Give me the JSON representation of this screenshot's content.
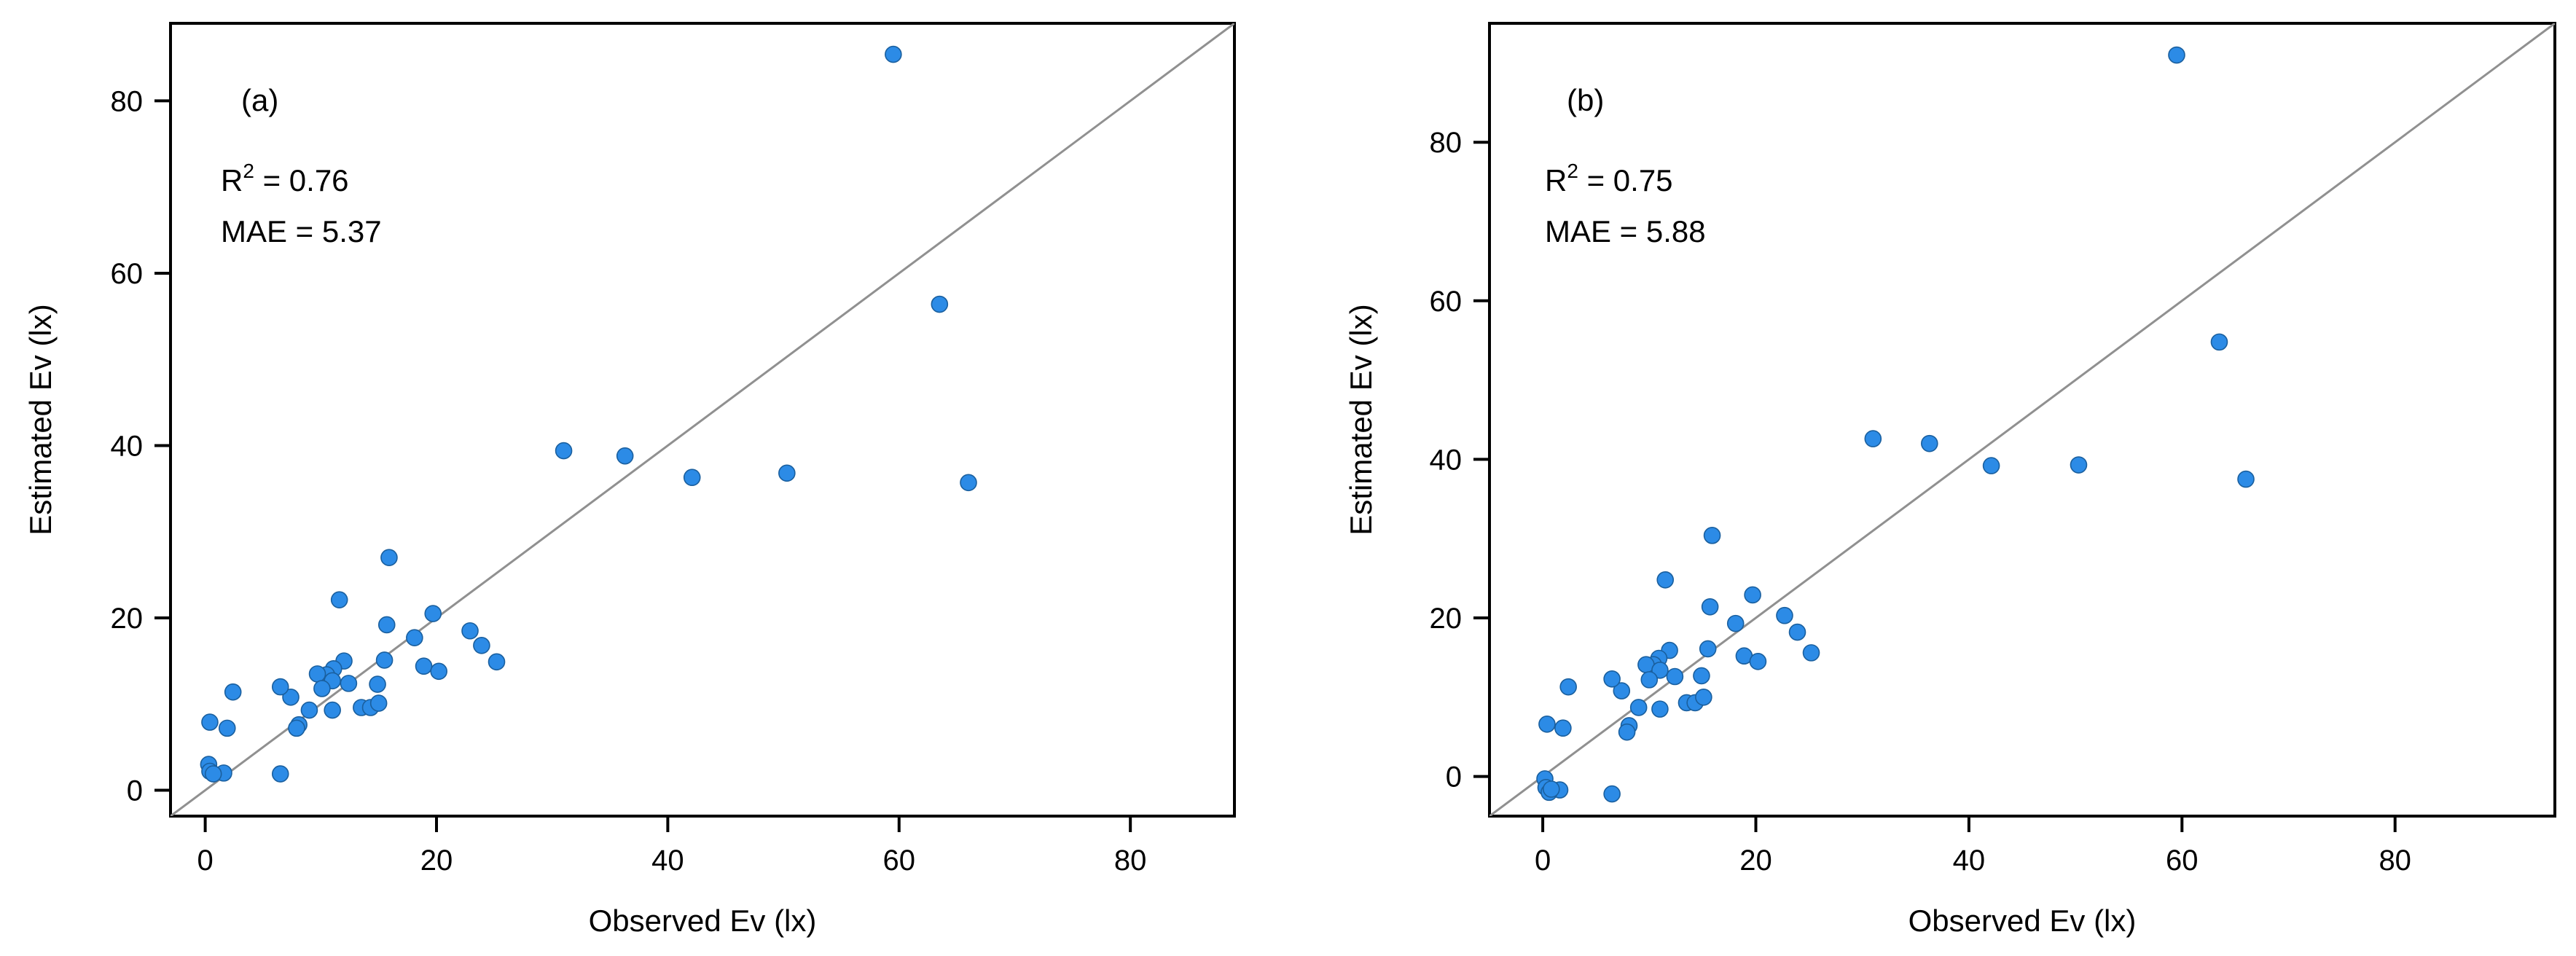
{
  "chart_data": [
    {
      "type": "scatter",
      "id": "a",
      "panel_label": "(a)",
      "title": "",
      "xlabel": "Observed Ev (lx)",
      "ylabel": "Estimated Ev (lx)",
      "xlim": [
        -3,
        89
      ],
      "ylim": [
        -3,
        89
      ],
      "xticks": [
        0,
        20,
        40,
        60,
        80
      ],
      "yticks": [
        0,
        20,
        40,
        60,
        80
      ],
      "reference_line": "y = x",
      "stats": {
        "r2_label": "R",
        "r2_sup": "2",
        "r2_text": " = 0.76",
        "mae_text": "MAE = 5.37"
      },
      "series": [
        {
          "name": "points",
          "color": "#2c8be6",
          "x": [
            59.5,
            63.5,
            66.0,
            31.0,
            36.3,
            42.1,
            50.3,
            15.9,
            11.6,
            19.7,
            15.7,
            18.1,
            22.9,
            23.9,
            25.2,
            18.9,
            20.2,
            15.5,
            12.0,
            11.1,
            10.5,
            9.7,
            11.0,
            12.4,
            10.1,
            14.9,
            13.5,
            14.3,
            15.0,
            11.0,
            9.0,
            8.1,
            7.9,
            7.4,
            6.5,
            2.4,
            1.9,
            0.4,
            6.5,
            0.3,
            0.4,
            1.6,
            0.7
          ],
          "y": [
            85.4,
            56.4,
            35.7,
            39.4,
            38.8,
            36.3,
            36.8,
            27.0,
            22.1,
            20.5,
            19.2,
            17.7,
            18.5,
            16.8,
            14.9,
            14.4,
            13.8,
            15.1,
            15.0,
            14.1,
            13.4,
            13.5,
            12.7,
            12.4,
            11.8,
            12.3,
            9.6,
            9.6,
            10.1,
            9.3,
            9.3,
            7.6,
            7.2,
            10.8,
            12.0,
            11.4,
            7.2,
            7.9,
            1.9,
            3.0,
            2.2,
            2.0,
            1.9
          ]
        }
      ]
    },
    {
      "type": "scatter",
      "id": "b",
      "panel_label": "(b)",
      "title": "",
      "xlabel": "Observed Ev (lx)",
      "ylabel": "Estimated Ev (lx)",
      "xlim": [
        -5,
        95
      ],
      "ylim": [
        -5,
        95
      ],
      "xticks": [
        0,
        20,
        40,
        60,
        80
      ],
      "yticks": [
        0,
        20,
        40,
        60,
        80
      ],
      "reference_line": "y = x",
      "stats": {
        "r2_label": "R",
        "r2_sup": "2",
        "r2_text": " = 0.75",
        "mae_text": "MAE = 5.88"
      },
      "series": [
        {
          "name": "points",
          "color": "#2c8be6",
          "x": [
            59.5,
            63.5,
            66.0,
            31.0,
            36.3,
            42.1,
            50.3,
            15.9,
            11.5,
            19.7,
            15.7,
            18.1,
            22.7,
            23.9,
            25.2,
            18.9,
            20.2,
            15.5,
            11.9,
            10.9,
            10.4,
            9.7,
            11.0,
            12.4,
            10.0,
            14.9,
            13.5,
            14.3,
            15.1,
            11.0,
            9.0,
            8.1,
            7.9,
            7.4,
            6.5,
            2.4,
            1.9,
            0.4,
            6.5,
            0.2,
            0.3,
            1.6,
            0.6,
            0.8
          ],
          "y": [
            91.0,
            54.8,
            37.5,
            42.6,
            42.0,
            39.2,
            39.3,
            30.4,
            24.8,
            22.9,
            21.4,
            19.3,
            20.3,
            18.2,
            15.6,
            15.2,
            14.5,
            16.1,
            15.9,
            14.9,
            14.1,
            14.1,
            13.4,
            12.6,
            12.2,
            12.7,
            9.3,
            9.3,
            10.0,
            8.5,
            8.7,
            6.4,
            5.6,
            10.8,
            12.3,
            11.3,
            6.1,
            6.6,
            -2.2,
            -0.3,
            -1.4,
            -1.7,
            -2.0,
            -1.6
          ]
        }
      ]
    }
  ]
}
